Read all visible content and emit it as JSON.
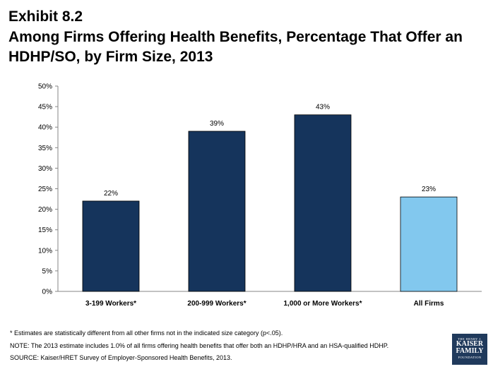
{
  "header": {
    "exhibit": "Exhibit 8.2",
    "title": "Among Firms Offering Health Benefits, Percentage That Offer an HDHP/SO, by Firm Size, 2013"
  },
  "chart_data": {
    "type": "bar",
    "title": "",
    "xlabel": "",
    "ylabel": "",
    "ylim": [
      0,
      50
    ],
    "yticks": [
      "0%",
      "5%",
      "10%",
      "15%",
      "20%",
      "25%",
      "30%",
      "35%",
      "40%",
      "45%",
      "50%"
    ],
    "categories": [
      "3-199 Workers*",
      "200-999 Workers*",
      "1,000 or More Workers*",
      "All Firms"
    ],
    "values": [
      22,
      39,
      43,
      23
    ],
    "data_labels": [
      "22%",
      "39%",
      "43%",
      "23%"
    ],
    "bar_colors": [
      "#15345c",
      "#15345c",
      "#15345c",
      "#82c8ee"
    ],
    "grid": false,
    "legend": "none"
  },
  "notes": {
    "line1": "* Estimates are statistically different from all other firms not in the indicated size category  (p<.05).",
    "line2": "NOTE: The 2013 estimate includes 1.0% of all firms offering health benefits that offer both an HDHP/HRA and an HSA-qualified HDHP.",
    "line3": "SOURCE:  Kaiser/HRET Survey of Employer-Sponsored Health Benefits, 2013."
  },
  "logo": {
    "line1": "THE HENRY J.",
    "line2a": "KAISER",
    "line2b": "FAMILY",
    "line3": "FOUNDATION"
  }
}
